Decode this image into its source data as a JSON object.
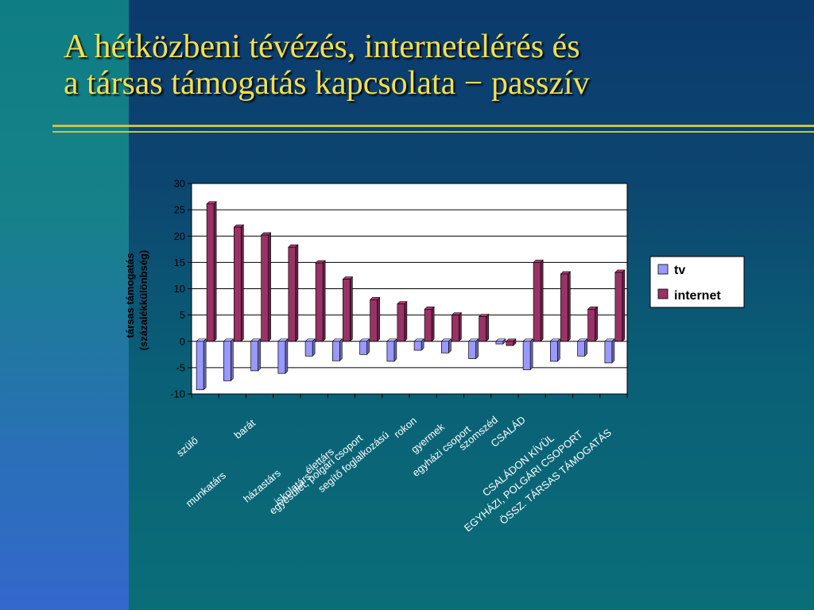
{
  "slide": {
    "title_line1": "A hétközbeni tévézés, internetelérés és",
    "title_line2": "a társas támogatás kapcsolata − passzív"
  },
  "colors": {
    "title": "#f3e04a",
    "tv": "#9999ff",
    "internet": "#993366",
    "plot_bg": "#ffffff"
  },
  "chart_data": {
    "type": "bar",
    "title": "",
    "xlabel": "",
    "ylabel_line1": "társas támogatás",
    "ylabel_line2": "(százalékkülönbség)",
    "ylim": [
      -10,
      30
    ],
    "yticks": [
      30,
      25,
      20,
      15,
      10,
      5,
      0,
      -5,
      -10
    ],
    "grid": true,
    "legend_position": "right",
    "categories": [
      "szülő",
      "munkatárs",
      "barát",
      "házastárs",
      "iskolatárs",
      "élettárs",
      "egyesület, polgári csoport",
      "segítő foglalkozású",
      "rokon",
      "gyermek",
      "egyházi csoport",
      "szomszéd",
      "CSALÁD",
      "CSALÁDON KÍVÜL",
      "EGYHÁZI, POLGÁRI CSOPORT",
      "ÖSSZ. TÁRSAS TÁMOGATÁS"
    ],
    "series": [
      {
        "name": "tv",
        "values": [
          -9.2,
          -7.5,
          -5.6,
          -6.1,
          -2.8,
          -3.7,
          -2.5,
          -3.8,
          -1.7,
          -2.2,
          -3.3,
          -0.5,
          -5.4,
          -3.8,
          -2.8,
          -4.1
        ]
      },
      {
        "name": "internet",
        "values": [
          26.1,
          21.7,
          20.2,
          17.9,
          14.9,
          11.8,
          7.9,
          7.1,
          6.1,
          5.0,
          4.7,
          -0.8,
          15.0,
          12.8,
          6.1,
          13.1
        ]
      }
    ]
  }
}
